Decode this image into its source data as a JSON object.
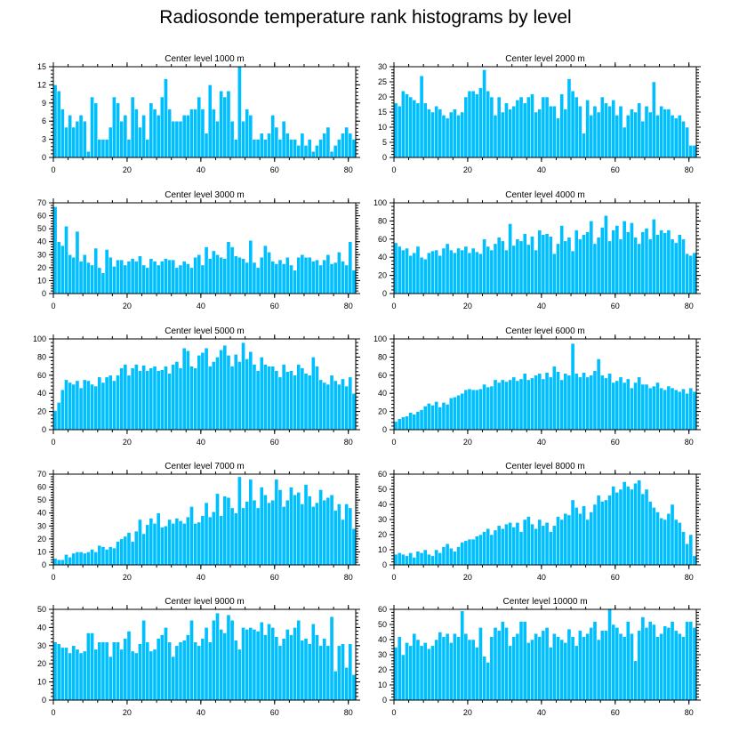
{
  "title": "Radiosonde temperature rank histograms by level",
  "colors": {
    "bar": "#00bfff",
    "frame": "#000000"
  },
  "chart_data": [
    {
      "type": "bar",
      "title": "Center level 1000 m",
      "xlim": [
        0,
        82
      ],
      "xticks": [
        0,
        20,
        40,
        60,
        80
      ],
      "ylim": [
        0,
        15
      ],
      "yticks": [
        0,
        3,
        6,
        9,
        12,
        15
      ],
      "values": [
        12,
        11,
        8,
        5,
        7,
        5,
        6,
        7,
        6,
        1,
        10,
        9,
        3,
        3,
        3,
        5,
        10,
        9,
        6,
        7,
        3,
        10,
        8,
        5,
        7,
        3,
        9,
        8,
        7,
        10,
        13,
        8,
        6,
        6,
        6,
        7,
        7,
        8,
        8,
        10,
        8,
        4,
        12,
        8,
        6,
        11,
        10,
        11,
        6,
        3,
        15,
        6,
        8,
        7,
        3,
        3,
        4,
        3,
        4,
        7,
        5,
        3,
        6,
        4,
        3,
        3,
        2,
        4,
        2,
        3,
        1,
        2,
        3,
        4,
        5,
        1,
        2,
        3,
        4,
        5,
        4,
        3
      ]
    },
    {
      "type": "bar",
      "title": "Center level 2000 m",
      "xlim": [
        0,
        82
      ],
      "xticks": [
        0,
        20,
        40,
        60,
        80
      ],
      "ylim": [
        0,
        30
      ],
      "yticks": [
        0,
        5,
        10,
        15,
        20,
        25,
        30
      ],
      "values": [
        18,
        17,
        22,
        21,
        20,
        19,
        18,
        27,
        18,
        16,
        15,
        17,
        16,
        14,
        13,
        15,
        16,
        14,
        15,
        20,
        22,
        22,
        21,
        23,
        29,
        22,
        20,
        14,
        20,
        15,
        18,
        16,
        17,
        19,
        20,
        18,
        20,
        21,
        15,
        16,
        20,
        20,
        17,
        17,
        13,
        21,
        16,
        26,
        22,
        20,
        17,
        8,
        19,
        14,
        17,
        15,
        20,
        18,
        17,
        19,
        14,
        17,
        10,
        14,
        16,
        15,
        18,
        12,
        17,
        15,
        25,
        14,
        17,
        16,
        16,
        14,
        13,
        14,
        12,
        10,
        4,
        4
      ]
    },
    {
      "type": "bar",
      "title": "Center level 3000 m",
      "xlim": [
        0,
        82
      ],
      "xticks": [
        0,
        20,
        40,
        60,
        80
      ],
      "ylim": [
        0,
        70
      ],
      "yticks": [
        0,
        10,
        20,
        30,
        40,
        50,
        60,
        70
      ],
      "values": [
        67,
        40,
        37,
        52,
        30,
        28,
        48,
        25,
        30,
        24,
        22,
        35,
        20,
        16,
        34,
        28,
        21,
        26,
        26,
        22,
        25,
        27,
        25,
        29,
        22,
        20,
        27,
        25,
        22,
        25,
        27,
        26,
        26,
        20,
        22,
        25,
        23,
        20,
        28,
        30,
        22,
        36,
        27,
        33,
        30,
        28,
        27,
        40,
        36,
        29,
        28,
        27,
        24,
        41,
        24,
        20,
        28,
        37,
        32,
        25,
        23,
        26,
        23,
        28,
        22,
        18,
        28,
        30,
        28,
        28,
        25,
        26,
        22,
        26,
        30,
        23,
        24,
        32,
        25,
        22,
        40,
        18
      ]
    },
    {
      "type": "bar",
      "title": "Center level 4000 m",
      "xlim": [
        0,
        82
      ],
      "xticks": [
        0,
        20,
        40,
        60,
        80
      ],
      "ylim": [
        0,
        100
      ],
      "yticks": [
        0,
        20,
        40,
        60,
        80,
        100
      ],
      "values": [
        56,
        52,
        48,
        50,
        42,
        45,
        52,
        40,
        38,
        45,
        47,
        48,
        42,
        50,
        55,
        48,
        45,
        50,
        48,
        52,
        45,
        50,
        46,
        44,
        60,
        52,
        48,
        55,
        62,
        58,
        48,
        77,
        53,
        60,
        58,
        66,
        54,
        63,
        48,
        70,
        65,
        66,
        63,
        44,
        55,
        75,
        58,
        62,
        47,
        70,
        60,
        65,
        68,
        80,
        55,
        62,
        73,
        86,
        58,
        70,
        75,
        60,
        80,
        68,
        78,
        62,
        55,
        68,
        72,
        60,
        82,
        65,
        70,
        67,
        70,
        60,
        56,
        65,
        60,
        44,
        42,
        45
      ]
    },
    {
      "type": "bar",
      "title": "Center level 5000 m",
      "xlim": [
        0,
        82
      ],
      "xticks": [
        0,
        20,
        40,
        60,
        80
      ],
      "ylim": [
        0,
        100
      ],
      "yticks": [
        0,
        20,
        40,
        60,
        80,
        100
      ],
      "values": [
        21,
        30,
        44,
        55,
        52,
        50,
        54,
        46,
        55,
        54,
        50,
        48,
        58,
        52,
        58,
        60,
        54,
        60,
        68,
        72,
        60,
        68,
        72,
        65,
        71,
        65,
        68,
        70,
        65,
        66,
        70,
        62,
        72,
        75,
        68,
        90,
        87,
        70,
        68,
        82,
        85,
        90,
        70,
        75,
        80,
        88,
        93,
        82,
        70,
        83,
        75,
        96,
        78,
        86,
        72,
        65,
        80,
        72,
        70,
        70,
        65,
        58,
        72,
        64,
        65,
        60,
        72,
        68,
        62,
        60,
        80,
        70,
        55,
        52,
        50,
        60,
        54,
        50,
        56,
        48,
        58,
        40
      ]
    },
    {
      "type": "bar",
      "title": "Center level 6000 m",
      "xlim": [
        0,
        82
      ],
      "xticks": [
        0,
        20,
        40,
        60,
        80
      ],
      "ylim": [
        0,
        100
      ],
      "yticks": [
        0,
        20,
        40,
        60,
        80,
        100
      ],
      "values": [
        9,
        12,
        14,
        15,
        19,
        17,
        20,
        22,
        26,
        29,
        27,
        31,
        25,
        30,
        28,
        35,
        36,
        38,
        40,
        44,
        45,
        44,
        44,
        45,
        50,
        47,
        48,
        55,
        52,
        55,
        53,
        55,
        58,
        54,
        56,
        62,
        55,
        57,
        60,
        62,
        56,
        63,
        58,
        70,
        64,
        55,
        62,
        60,
        95,
        62,
        58,
        63,
        58,
        60,
        65,
        78,
        60,
        57,
        62,
        52,
        54,
        58,
        52,
        56,
        46,
        52,
        58,
        50,
        50,
        46,
        48,
        52,
        46,
        44,
        48,
        46,
        44,
        42,
        45,
        40,
        46,
        42
      ]
    },
    {
      "type": "bar",
      "title": "Center level 7000 m",
      "xlim": [
        0,
        82
      ],
      "xticks": [
        0,
        20,
        40,
        60,
        80
      ],
      "ylim": [
        0,
        70
      ],
      "yticks": [
        0,
        10,
        20,
        30,
        40,
        50,
        60,
        70
      ],
      "values": [
        5,
        4,
        4,
        8,
        6,
        9,
        10,
        10,
        9,
        10,
        12,
        10,
        15,
        14,
        12,
        14,
        13,
        18,
        20,
        22,
        25,
        18,
        26,
        35,
        24,
        31,
        36,
        32,
        40,
        29,
        30,
        35,
        32,
        36,
        34,
        32,
        37,
        45,
        32,
        33,
        38,
        48,
        37,
        41,
        55,
        38,
        53,
        52,
        44,
        40,
        68,
        44,
        49,
        66,
        50,
        44,
        60,
        54,
        48,
        50,
        66,
        58,
        45,
        50,
        60,
        54,
        56,
        47,
        62,
        53,
        45,
        48,
        58,
        50,
        52,
        54,
        42,
        47,
        35,
        47,
        44,
        28
      ]
    },
    {
      "type": "bar",
      "title": "Center level 8000 m",
      "xlim": [
        0,
        82
      ],
      "xticks": [
        0,
        20,
        40,
        60,
        80
      ],
      "ylim": [
        0,
        60
      ],
      "yticks": [
        0,
        10,
        20,
        30,
        40,
        50,
        60
      ],
      "values": [
        7,
        8,
        7,
        6,
        8,
        5,
        9,
        8,
        10,
        7,
        6,
        10,
        8,
        12,
        14,
        11,
        9,
        12,
        15,
        16,
        17,
        17,
        19,
        20,
        22,
        24,
        20,
        23,
        26,
        24,
        27,
        28,
        25,
        28,
        22,
        30,
        32,
        27,
        24,
        30,
        26,
        28,
        22,
        26,
        32,
        30,
        34,
        33,
        43,
        38,
        34,
        39,
        30,
        35,
        40,
        46,
        42,
        43,
        46,
        52,
        48,
        50,
        55,
        52,
        50,
        54,
        56,
        47,
        50,
        42,
        38,
        35,
        31,
        30,
        34,
        40,
        30,
        28,
        22,
        14,
        20,
        6
      ]
    },
    {
      "type": "bar",
      "title": "Center level 9000 m",
      "xlim": [
        0,
        82
      ],
      "xticks": [
        0,
        20,
        40,
        60,
        80
      ],
      "ylim": [
        0,
        50
      ],
      "yticks": [
        0,
        10,
        20,
        30,
        40,
        50
      ],
      "values": [
        32,
        31,
        29,
        29,
        26,
        30,
        28,
        26,
        27,
        37,
        37,
        28,
        32,
        32,
        32,
        24,
        32,
        32,
        28,
        34,
        38,
        27,
        26,
        31,
        44,
        32,
        27,
        28,
        34,
        36,
        40,
        32,
        24,
        30,
        32,
        33,
        36,
        44,
        32,
        30,
        34,
        40,
        32,
        44,
        48,
        39,
        37,
        47,
        44,
        33,
        28,
        40,
        39,
        40,
        39,
        38,
        43,
        36,
        42,
        40,
        35,
        30,
        34,
        39,
        36,
        40,
        44,
        33,
        34,
        31,
        42,
        36,
        30,
        34,
        30,
        46,
        16,
        30,
        31,
        18,
        31,
        14
      ]
    },
    {
      "type": "bar",
      "title": "Center level 10000 m",
      "xlim": [
        0,
        82
      ],
      "xticks": [
        0,
        20,
        40,
        60,
        80
      ],
      "ylim": [
        0,
        60
      ],
      "yticks": [
        0,
        10,
        20,
        30,
        40,
        50,
        60
      ],
      "values": [
        35,
        42,
        30,
        38,
        36,
        44,
        40,
        36,
        38,
        34,
        36,
        40,
        45,
        42,
        44,
        38,
        44,
        42,
        59,
        44,
        40,
        40,
        35,
        48,
        29,
        25,
        42,
        48,
        46,
        52,
        48,
        36,
        42,
        44,
        52,
        52,
        38,
        40,
        44,
        42,
        46,
        48,
        35,
        44,
        42,
        40,
        38,
        47,
        42,
        36,
        46,
        42,
        44,
        48,
        52,
        40,
        46,
        46,
        60,
        50,
        48,
        44,
        42,
        52,
        44,
        26,
        46,
        55,
        48,
        52,
        50,
        42,
        44,
        49,
        48,
        52,
        46,
        44,
        42,
        52,
        52,
        48
      ]
    }
  ]
}
